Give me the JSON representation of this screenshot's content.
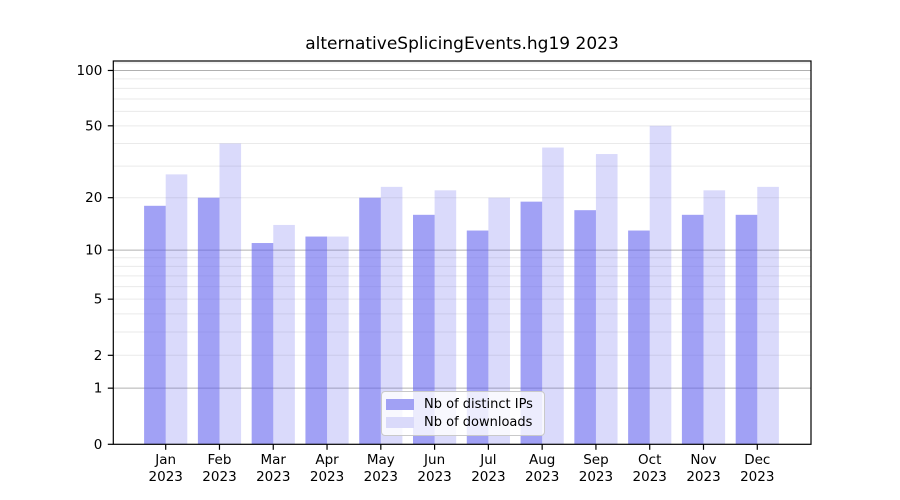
{
  "chart_data": {
    "type": "bar",
    "title": "alternativeSplicingEvents.hg19 2023",
    "categories": [
      "Jan",
      "Feb",
      "Mar",
      "Apr",
      "May",
      "Jun",
      "Jul",
      "Aug",
      "Sep",
      "Oct",
      "Nov",
      "Dec"
    ],
    "category_year": "2023",
    "series": [
      {
        "name": "Nb of distinct IPs",
        "color": "#a1a1f4",
        "fill": "rgba(99,99,238,0.60)",
        "values": [
          18,
          20,
          11,
          12,
          20,
          16,
          13,
          19,
          17,
          13,
          16,
          16
        ]
      },
      {
        "name": "Nb of downloads",
        "color": "#dadafa",
        "fill": "rgba(99,99,238,0.235)",
        "values": [
          27,
          40,
          14,
          12,
          23,
          22,
          20,
          38,
          35,
          50,
          22,
          23
        ]
      }
    ],
    "yaxis": {
      "scale": "log1p",
      "ticks": [
        "100",
        "50",
        "20",
        "10",
        "5",
        "2",
        "1",
        "0"
      ],
      "tick_values": [
        100,
        50,
        20,
        10,
        5,
        2,
        1,
        0
      ],
      "major_gridlines": [
        1,
        10,
        100
      ],
      "minor_gridlines": [
        2,
        3,
        4,
        5,
        6,
        7,
        8,
        9,
        20,
        30,
        40,
        50,
        60,
        70,
        80,
        90,
        110
      ],
      "range": [
        0,
        112
      ]
    },
    "xlabel": "",
    "ylabel": "",
    "grid": true,
    "legend_position": "bottom-center",
    "colors": {
      "background": "#ffffff",
      "axis": "#000000",
      "text": "#000000",
      "major_grid": "#b0b0b0",
      "minor_grid": "#eaeaea"
    }
  }
}
